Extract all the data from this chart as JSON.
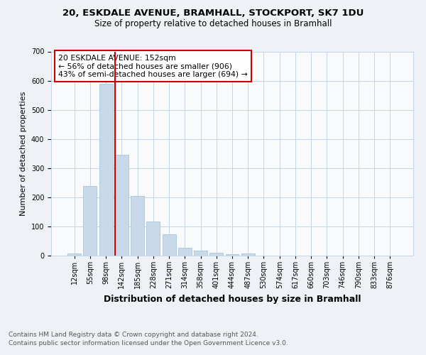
{
  "title1": "20, ESKDALE AVENUE, BRAMHALL, STOCKPORT, SK7 1DU",
  "title2": "Size of property relative to detached houses in Bramhall",
  "xlabel": "Distribution of detached houses by size in Bramhall",
  "ylabel": "Number of detached properties",
  "bar_labels": [
    "12sqm",
    "55sqm",
    "98sqm",
    "142sqm",
    "185sqm",
    "228sqm",
    "271sqm",
    "314sqm",
    "358sqm",
    "401sqm",
    "444sqm",
    "487sqm",
    "530sqm",
    "574sqm",
    "617sqm",
    "660sqm",
    "703sqm",
    "746sqm",
    "790sqm",
    "833sqm",
    "876sqm"
  ],
  "bar_values": [
    8,
    238,
    590,
    345,
    205,
    118,
    73,
    27,
    17,
    10,
    6,
    8,
    0,
    0,
    0,
    0,
    0,
    0,
    0,
    0,
    0
  ],
  "bar_color": "#c8d9ea",
  "bar_edge_color": "#a8c4de",
  "vline_x": 3,
  "vline_color": "#cc0000",
  "annotation_text": "20 ESKDALE AVENUE: 152sqm\n← 56% of detached houses are smaller (906)\n43% of semi-detached houses are larger (694) →",
  "annotation_box_color": "white",
  "annotation_box_edge_color": "#cc0000",
  "ylim": [
    0,
    700
  ],
  "yticks": [
    0,
    100,
    200,
    300,
    400,
    500,
    600,
    700
  ],
  "footnote1": "Contains HM Land Registry data © Crown copyright and database right 2024.",
  "footnote2": "Contains public sector information licensed under the Open Government Licence v3.0.",
  "bg_color": "#eef2f7",
  "plot_bg_color": "#f8fafc",
  "grid_color": "#c5d5e8",
  "title1_fontsize": 9.5,
  "title2_fontsize": 8.5,
  "xlabel_fontsize": 9,
  "ylabel_fontsize": 8,
  "tick_fontsize": 7,
  "annotation_fontsize": 7.8,
  "footnote_fontsize": 6.5
}
